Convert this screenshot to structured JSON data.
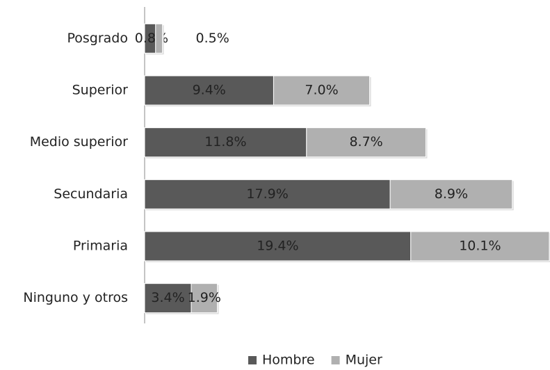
{
  "chart_data": {
    "type": "stacked-bar-horizontal",
    "categories": [
      "Posgrado",
      "Superior",
      "Medio superior",
      "Secundaria",
      "Primaria",
      "Ninguno y otros"
    ],
    "series": [
      {
        "name": "Hombre",
        "color": "#595959",
        "values": [
          0.8,
          9.4,
          11.8,
          17.9,
          19.4,
          3.4
        ],
        "value_labels": [
          "0.8%",
          "9.4%",
          "11.8%",
          "17.9%",
          "19.4%",
          "3.4%"
        ]
      },
      {
        "name": "Mujer",
        "color": "#b0b0b0",
        "values": [
          0.5,
          7.0,
          8.7,
          8.9,
          10.1,
          1.9
        ],
        "value_labels": [
          "0.5%",
          "7.0%",
          "8.7%",
          "8.9%",
          "10.1%",
          "1.9%"
        ]
      }
    ],
    "legend": "bottom"
  }
}
